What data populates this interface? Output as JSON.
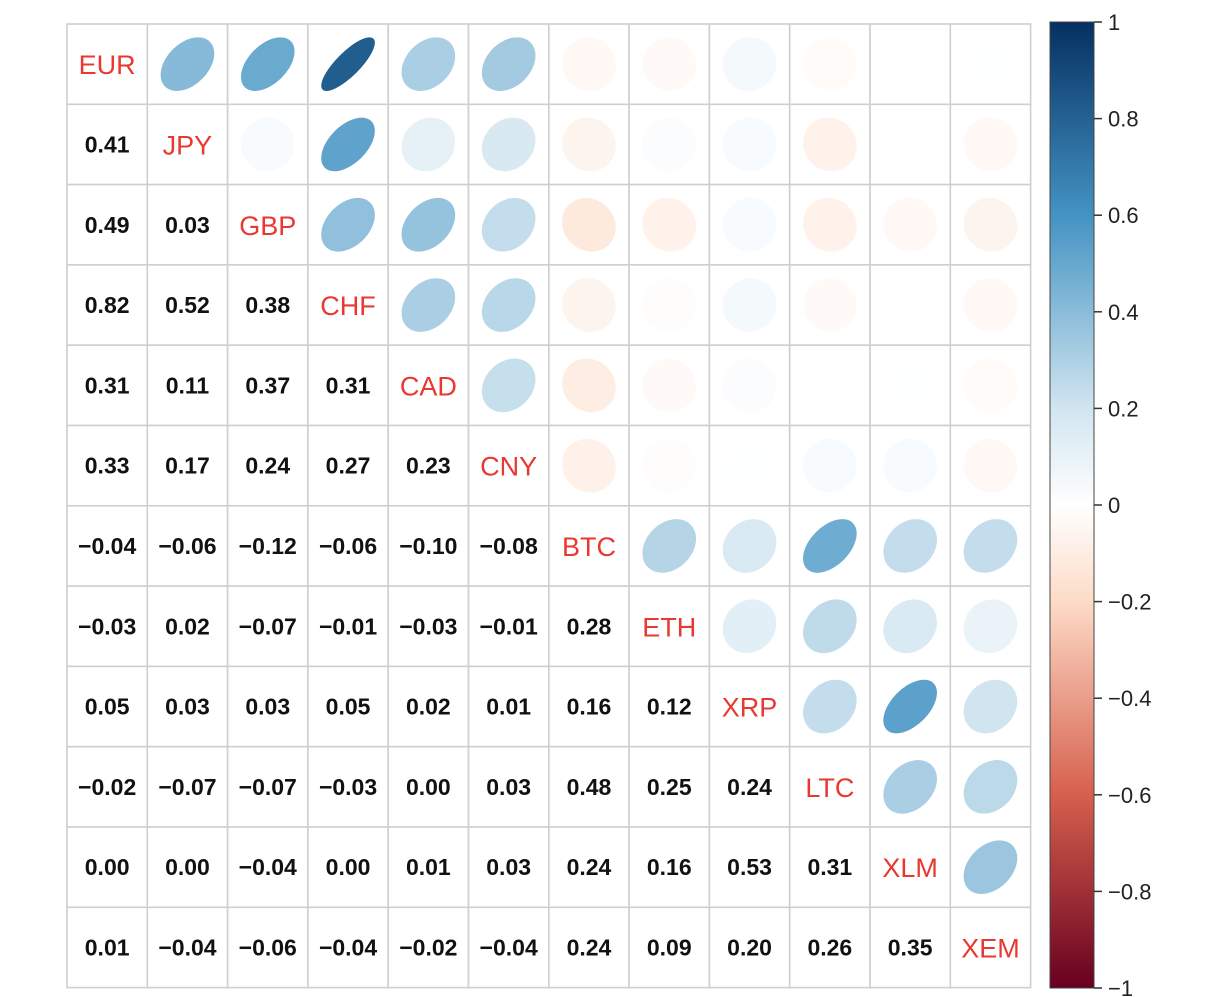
{
  "chart_data": {
    "type": "heatmap",
    "variables": [
      "EUR",
      "JPY",
      "GBP",
      "CHF",
      "CAD",
      "CNY",
      "BTC",
      "ETH",
      "XRP",
      "LTC",
      "XLM",
      "XEM"
    ],
    "lower_triangle_labels": [
      [],
      [
        "0.41"
      ],
      [
        "0.49",
        "0.03"
      ],
      [
        "0.82",
        "0.52",
        "0.38"
      ],
      [
        "0.31",
        "0.11",
        "0.37",
        "0.31"
      ],
      [
        "0.33",
        "0.17",
        "0.24",
        "0.27",
        "0.23"
      ],
      [
        "−0.04",
        "−0.06",
        "−0.12",
        "−0.06",
        "−0.10",
        "−0.08"
      ],
      [
        "−0.03",
        "0.02",
        "−0.07",
        "−0.01",
        "−0.03",
        "−0.01",
        "0.28"
      ],
      [
        "0.05",
        "0.03",
        "0.03",
        "0.05",
        "0.02",
        "0.01",
        "0.16",
        "0.12"
      ],
      [
        "−0.02",
        "−0.07",
        "−0.07",
        "−0.03",
        "0.00",
        "0.03",
        "0.48",
        "0.25",
        "0.24"
      ],
      [
        "0.00",
        "0.00",
        "−0.04",
        "0.00",
        "0.01",
        "0.03",
        "0.24",
        "0.16",
        "0.53",
        "0.31"
      ],
      [
        "0.01",
        "−0.04",
        "−0.06",
        "−0.04",
        "−0.02",
        "−0.04",
        "0.24",
        "0.09",
        "0.20",
        "0.26",
        "0.35"
      ]
    ],
    "colorbar": {
      "range": [
        -1,
        1
      ],
      "ticks": [
        "1",
        "0.8",
        "0.6",
        "0.4",
        "0.2",
        "0",
        "−0.2",
        "−0.4",
        "−0.6",
        "−0.8",
        "−1"
      ],
      "colors": {
        "neg1": "#67001f",
        "neg06": "#d6604d",
        "neg02": "#fddbc7",
        "zero": "#ffffff",
        "pos02": "#d1e5f0",
        "pos06": "#4393c3",
        "pos1": "#053061"
      }
    },
    "upper_shape": "ellipse",
    "lower_shape": "number",
    "diagonal": "label",
    "grid": true,
    "legend_position": "right"
  }
}
